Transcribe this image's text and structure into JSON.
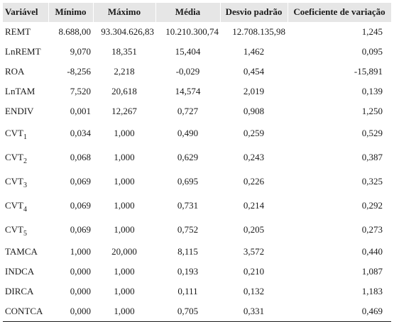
{
  "table": {
    "headers": [
      "Variável",
      "Mínimo",
      "Máximo",
      "Média",
      "Desvio padrão",
      "Coeficiente de variação"
    ],
    "rows": [
      {
        "name": "REMT",
        "sub": "",
        "min": "8.688,00",
        "max": "93.304.626,83",
        "mean": "10.210.300,74",
        "sd": "12.708.135,98",
        "cv": "1,245"
      },
      {
        "name": "LnREMT",
        "sub": "",
        "min": "9,070",
        "max": "18,351",
        "mean": "15,404",
        "sd": "1,462",
        "cv": "0,095"
      },
      {
        "name": "ROA",
        "sub": "",
        "min": "-8,256",
        "max": "2,218",
        "mean": "-0,029",
        "sd": "0,454",
        "cv": "-15,891"
      },
      {
        "name": "LnTAM",
        "sub": "",
        "min": "7,520",
        "max": "20,618",
        "mean": "14,574",
        "sd": "2,019",
        "cv": "0,139"
      },
      {
        "name": "ENDIV",
        "sub": "",
        "min": "0,001",
        "max": "12,267",
        "mean": "0,727",
        "sd": "0,908",
        "cv": "1,250"
      },
      {
        "name": "CVT",
        "sub": "1",
        "min": "0,034",
        "max": "1,000",
        "mean": "0,490",
        "sd": "0,259",
        "cv": "0,529"
      },
      {
        "name": "CVT",
        "sub": "2",
        "min": "0,068",
        "max": "1,000",
        "mean": "0,629",
        "sd": "0,243",
        "cv": "0,387"
      },
      {
        "name": "CVT",
        "sub": "3",
        "min": "0,069",
        "max": "1,000",
        "mean": "0,695",
        "sd": "0,226",
        "cv": "0,325"
      },
      {
        "name": "CVT",
        "sub": "4",
        "min": "0,069",
        "max": "1,000",
        "mean": "0,731",
        "sd": "0,214",
        "cv": "0,292"
      },
      {
        "name": "CVT",
        "sub": "5",
        "min": "0,069",
        "max": "1,000",
        "mean": "0,752",
        "sd": "0,205",
        "cv": "0,273"
      },
      {
        "name": "TAMCA",
        "sub": "",
        "min": "1,000",
        "max": "20,000",
        "mean": "8,115",
        "sd": "3,572",
        "cv": "0,440"
      },
      {
        "name": "INDCA",
        "sub": "",
        "min": "0,000",
        "max": "1,000",
        "mean": "0,193",
        "sd": "0,210",
        "cv": "1,087"
      },
      {
        "name": "DIRCA",
        "sub": "",
        "min": "0,000",
        "max": "1,000",
        "mean": "0,111",
        "sd": "0,132",
        "cv": "1,183"
      },
      {
        "name": "CONTCA",
        "sub": "",
        "min": "0,000",
        "max": "1,000",
        "mean": "0,705",
        "sd": "0,331",
        "cv": "0,469"
      }
    ]
  }
}
